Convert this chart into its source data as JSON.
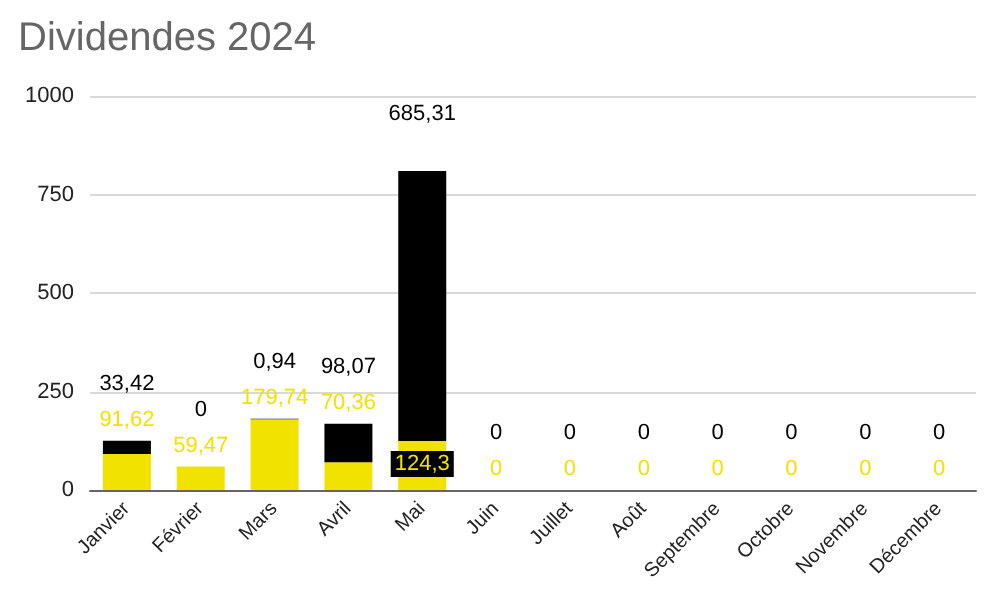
{
  "chart_data": {
    "type": "bar",
    "title": "Dividendes 2024",
    "stacked": true,
    "grid": "y",
    "categories": [
      "Janvier",
      "Février",
      "Mars",
      "Avril",
      "Mai",
      "Juin",
      "Juillet",
      "Août",
      "Septembre",
      "Octobre",
      "Novembre",
      "Décembre"
    ],
    "series": [
      {
        "color": "#f2e200",
        "values": [
          91.62,
          59.47,
          179.74,
          70.36,
          124.3,
          0,
          0,
          0,
          0,
          0,
          0,
          0
        ],
        "value_labels": [
          "91,62",
          "59,47",
          "179,74",
          "70,36",
          "124,3",
          "0",
          "0",
          "0",
          "0",
          "0",
          "0",
          "0"
        ]
      },
      {
        "color": "#000000",
        "values": [
          33.42,
          0,
          0.94,
          98.07,
          685.31,
          0,
          0,
          0,
          0,
          0,
          0,
          0
        ],
        "value_labels": [
          "33,42",
          "0",
          "0,94",
          "98,07",
          "685,31",
          "0",
          "0",
          "0",
          "0",
          "0",
          "0",
          "0"
        ]
      }
    ],
    "ylim": [
      0,
      1000
    ],
    "yticks": [
      0,
      250,
      500,
      750,
      1000
    ]
  }
}
